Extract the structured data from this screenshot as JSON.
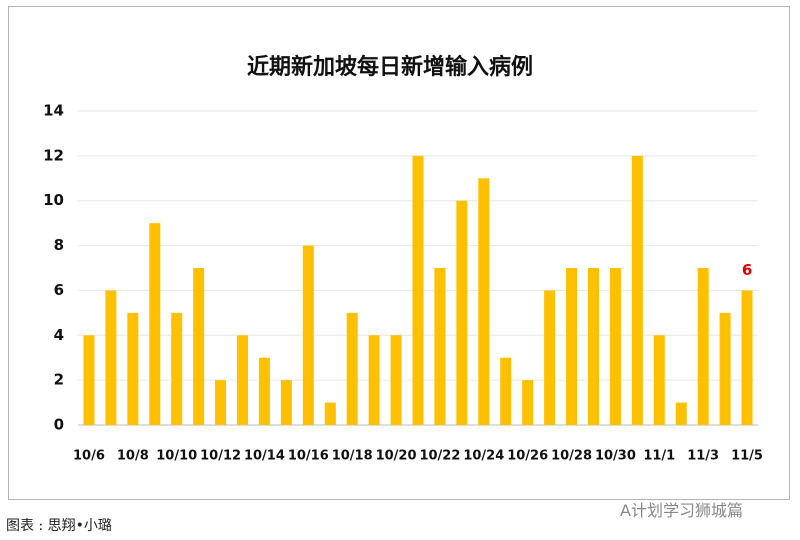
{
  "chart_data": {
    "type": "bar",
    "title": "近期新加坡每日新增输入病例",
    "categories": [
      "10/6",
      null,
      "10/8",
      null,
      "10/10",
      null,
      "10/12",
      null,
      "10/14",
      null,
      "10/16",
      null,
      "10/18",
      null,
      "10/20",
      null,
      "10/22",
      null,
      "10/24",
      null,
      "10/26",
      null,
      "10/28",
      null,
      "10/30",
      null,
      "11/1",
      null,
      "11/3",
      null,
      "11/5"
    ],
    "values": [
      4,
      6,
      5,
      9,
      5,
      7,
      2,
      4,
      3,
      2,
      8,
      1,
      5,
      4,
      4,
      12,
      7,
      10,
      11,
      3,
      2,
      6,
      7,
      7,
      7,
      12,
      4,
      1,
      7,
      5,
      6
    ],
    "color": "#ffc000",
    "label_color": "#e00000",
    "data_label": "last",
    "ylim": [
      0,
      14
    ],
    "yticks": [
      0,
      2,
      4,
      6,
      8,
      10,
      12,
      14
    ],
    "grid": true
  },
  "source": "图表 : 思翔•小璐",
  "watermark": "A计划学习狮城篇"
}
